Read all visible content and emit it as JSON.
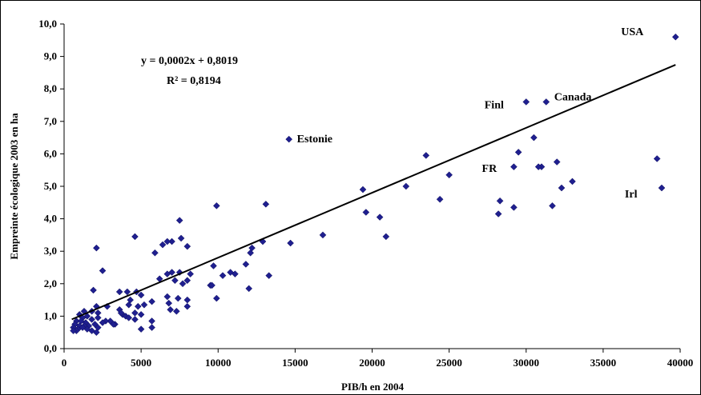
{
  "chart_data": {
    "type": "scatter",
    "title": "",
    "xlabel": "PIB/h en 2004",
    "ylabel": "Empreinte écologique 2003 en ha",
    "xlim": [
      0,
      40000
    ],
    "ylim": [
      0,
      10
    ],
    "x_ticks": [
      "0",
      "5000",
      "10000",
      "15000",
      "20000",
      "25000",
      "30000",
      "35000",
      "40000"
    ],
    "y_ticks": [
      "0,0",
      "1,0",
      "2,0",
      "3,0",
      "4,0",
      "5,0",
      "6,0",
      "7,0",
      "8,0",
      "9,0",
      "10,0"
    ],
    "grid": false,
    "legend": "none",
    "marker_color": "#1f1f8f",
    "trendline": {
      "slope": 0.0002,
      "intercept": 0.8019,
      "x_range": [
        500,
        39700
      ],
      "equation_label": "y = 0,0002x + 0,8019",
      "r2_label": "R² = 0,8194",
      "color": "#000000"
    },
    "annotations": [
      {
        "text": "USA",
        "x": 39700,
        "y": 9.6
      },
      {
        "text": "Canada",
        "x": 31300,
        "y": 7.6
      },
      {
        "text": "Finl",
        "x": 30000,
        "y": 7.6
      },
      {
        "text": "Estonie",
        "x": 14600,
        "y": 6.45
      },
      {
        "text": "FR",
        "x": 29000,
        "y": 5.3
      },
      {
        "text": "Irl",
        "x": 38800,
        "y": 4.95
      }
    ],
    "points": [
      [
        39700,
        9.6
      ],
      [
        31300,
        7.6
      ],
      [
        30000,
        7.6
      ],
      [
        14600,
        6.45
      ],
      [
        30500,
        6.5
      ],
      [
        29500,
        6.05
      ],
      [
        23500,
        5.95
      ],
      [
        38500,
        5.85
      ],
      [
        32000,
        5.75
      ],
      [
        31000,
        5.6
      ],
      [
        29200,
        5.6
      ],
      [
        30800,
        5.6
      ],
      [
        25000,
        5.35
      ],
      [
        33000,
        5.15
      ],
      [
        22200,
        5.0
      ],
      [
        32300,
        4.95
      ],
      [
        38800,
        4.95
      ],
      [
        19400,
        4.9
      ],
      [
        24400,
        4.6
      ],
      [
        28300,
        4.55
      ],
      [
        9900,
        4.4
      ],
      [
        13100,
        4.45
      ],
      [
        29200,
        4.35
      ],
      [
        31700,
        4.4
      ],
      [
        19600,
        4.2
      ],
      [
        28200,
        4.15
      ],
      [
        20500,
        4.05
      ],
      [
        7500,
        3.95
      ],
      [
        16800,
        3.5
      ],
      [
        20900,
        3.45
      ],
      [
        4600,
        3.45
      ],
      [
        7600,
        3.4
      ],
      [
        7000,
        3.3
      ],
      [
        6700,
        3.3
      ],
      [
        12900,
        3.3
      ],
      [
        14700,
        3.25
      ],
      [
        6400,
        3.2
      ],
      [
        8000,
        3.15
      ],
      [
        2100,
        3.1
      ],
      [
        12200,
        3.1
      ],
      [
        12100,
        2.95
      ],
      [
        5900,
        2.95
      ],
      [
        11800,
        2.6
      ],
      [
        9700,
        2.55
      ],
      [
        2500,
        2.4
      ],
      [
        7000,
        2.35
      ],
      [
        7500,
        2.35
      ],
      [
        6700,
        2.3
      ],
      [
        8200,
        2.3
      ],
      [
        10800,
        2.35
      ],
      [
        11100,
        2.3
      ],
      [
        10300,
        2.25
      ],
      [
        13300,
        2.25
      ],
      [
        6200,
        2.15
      ],
      [
        7200,
        2.1
      ],
      [
        8000,
        2.1
      ],
      [
        7700,
        2.0
      ],
      [
        9500,
        1.95
      ],
      [
        9600,
        1.95
      ],
      [
        12000,
        1.85
      ],
      [
        1900,
        1.8
      ],
      [
        3600,
        1.75
      ],
      [
        4100,
        1.75
      ],
      [
        4700,
        1.75
      ],
      [
        5000,
        1.65
      ],
      [
        6700,
        1.6
      ],
      [
        7400,
        1.55
      ],
      [
        8000,
        1.5
      ],
      [
        9900,
        1.55
      ],
      [
        4300,
        1.5
      ],
      [
        5700,
        1.45
      ],
      [
        6800,
        1.4
      ],
      [
        4200,
        1.35
      ],
      [
        4800,
        1.3
      ],
      [
        5200,
        1.35
      ],
      [
        2800,
        1.3
      ],
      [
        8000,
        1.3
      ],
      [
        2100,
        1.3
      ],
      [
        3600,
        1.2
      ],
      [
        4600,
        1.1
      ],
      [
        7300,
        1.15
      ],
      [
        6900,
        1.2
      ],
      [
        1300,
        1.15
      ],
      [
        1800,
        1.15
      ],
      [
        2200,
        1.1
      ],
      [
        1000,
        1.05
      ],
      [
        3800,
        1.05
      ],
      [
        4000,
        1.0
      ],
      [
        5000,
        1.05
      ],
      [
        1500,
        1.0
      ],
      [
        2200,
        0.95
      ],
      [
        3000,
        0.85
      ],
      [
        4200,
        0.95
      ],
      [
        4600,
        0.9
      ],
      [
        5700,
        0.85
      ],
      [
        1200,
        0.95
      ],
      [
        1800,
        0.9
      ],
      [
        2700,
        0.85
      ],
      [
        3300,
        0.75
      ],
      [
        800,
        0.85
      ],
      [
        1100,
        0.85
      ],
      [
        1400,
        0.8
      ],
      [
        2000,
        0.75
      ],
      [
        2500,
        0.8
      ],
      [
        1600,
        0.7
      ],
      [
        700,
        0.75
      ],
      [
        1000,
        0.7
      ],
      [
        1300,
        0.7
      ],
      [
        2200,
        0.65
      ],
      [
        600,
        0.65
      ],
      [
        900,
        0.6
      ],
      [
        1200,
        0.65
      ],
      [
        1800,
        0.55
      ],
      [
        800,
        0.55
      ],
      [
        1500,
        0.6
      ],
      [
        600,
        0.55
      ],
      [
        2100,
        0.5
      ],
      [
        3700,
        1.1
      ],
      [
        3200,
        0.75
      ],
      [
        5700,
        0.65
      ],
      [
        5000,
        0.6
      ]
    ]
  }
}
